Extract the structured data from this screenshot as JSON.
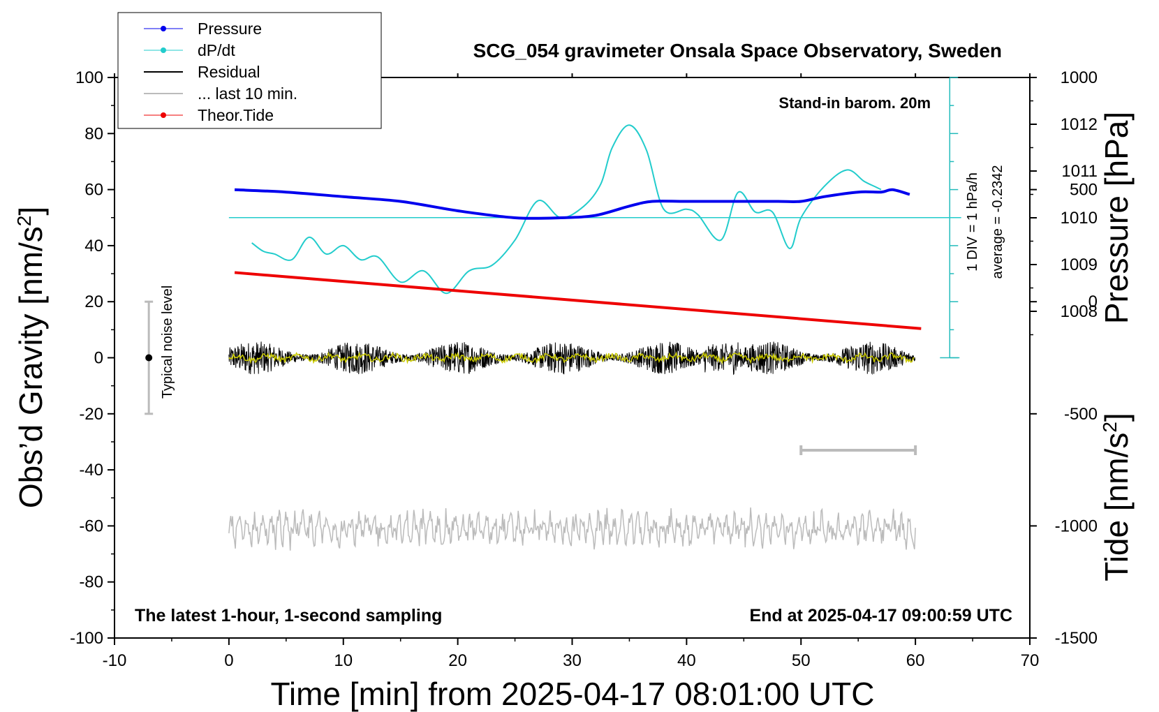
{
  "chart_data": {
    "type": "line",
    "title": "SCG_054 gravimeter Onsala Space Observatory, Sweden",
    "xlabel": "Time [min] from 2025-04-17 08:01:00 UTC",
    "ylabel_left": "Obs’d Gravity [nm/s",
    "ylabel_left_sup": "2",
    "ylabel_left_end": "]",
    "ylabel_pressure": "Pressure [hPa]",
    "ylabel_tide": "Tide [nm/s",
    "ylabel_tide_sup": "2",
    "ylabel_tide_end": "]",
    "xlim": [
      -10,
      70
    ],
    "ylim_gravity": [
      -100,
      100
    ],
    "ylim_pressure_ticks": [
      1008,
      1009,
      1010,
      1011,
      1012
    ],
    "ylim_tide": [
      -1500,
      1000
    ],
    "x_ticks": [
      -10,
      0,
      10,
      20,
      30,
      40,
      50,
      60,
      70
    ],
    "y_ticks_gravity": [
      -100,
      -80,
      -60,
      -40,
      -20,
      0,
      20,
      40,
      60,
      80,
      100
    ],
    "y_ticks_tide": [
      -1500,
      -1000,
      -500,
      0,
      500,
      1000
    ],
    "annotations": {
      "stand_in": "Stand-in barom. 20m",
      "latest": "The latest 1-hour, 1-second sampling",
      "end_at": "End at 2025-04-17 09:00:59 UTC",
      "noise": "Typical noise level",
      "div": "1 DIV = 1 hPa/h",
      "average": "average = -0.2342"
    },
    "legend": [
      {
        "label": "Pressure",
        "color": "#0000ee",
        "marker": true
      },
      {
        "label": "dP/dt",
        "color": "#22cccc",
        "marker": true
      },
      {
        "label": "Residual",
        "color": "#000000",
        "marker": false
      },
      {
        "label": "... last 10 min.",
        "color": "#bbbbbb",
        "marker": false
      },
      {
        "label": "Theor.Tide",
        "color": "#ee0000",
        "marker": true
      }
    ],
    "series": {
      "pressure": {
        "name": "Pressure",
        "unit": "hPa",
        "color": "#0000ee",
        "x": [
          0.5,
          5,
          10,
          15,
          20,
          25,
          29,
          32,
          35,
          37,
          40,
          45,
          48,
          50,
          52,
          55,
          57,
          58,
          59.5
        ],
        "y": [
          1010.6,
          1010.55,
          1010.45,
          1010.35,
          1010.15,
          1010.0,
          1010.0,
          1010.05,
          1010.25,
          1010.35,
          1010.35,
          1010.35,
          1010.35,
          1010.35,
          1010.45,
          1010.55,
          1010.55,
          1010.6,
          1010.5
        ]
      },
      "dpdt": {
        "name": "dP/dt",
        "unit": "gravity-axis units",
        "color": "#22cccc",
        "zero_level": 50,
        "x": [
          2,
          3,
          4,
          5.5,
          7,
          8.5,
          10,
          11.5,
          13,
          15,
          17,
          19,
          21,
          23,
          25,
          27,
          29,
          31,
          32.5,
          33.5,
          35,
          36.5,
          38,
          40,
          41,
          43,
          44.5,
          46,
          47.5,
          49,
          50,
          52,
          54,
          55.5,
          56.5,
          57
        ],
        "y": [
          41,
          38,
          37,
          35,
          43,
          37,
          40,
          35,
          36,
          27,
          31,
          23,
          31,
          33,
          42,
          56,
          50,
          54,
          62,
          75,
          83,
          74,
          53,
          53,
          51,
          42,
          59,
          52,
          52,
          39,
          50,
          61,
          67,
          63,
          61,
          60
        ]
      },
      "residual": {
        "name": "Residual",
        "color": "#000000",
        "x_range": [
          0,
          60
        ],
        "mean": 0,
        "amplitude": 6
      },
      "residual_smooth": {
        "name": "Residual smoothed",
        "color": "#cccc00",
        "x_range": [
          0,
          60
        ],
        "mean": 0,
        "amplitude": 2
      },
      "last10": {
        "name": "... last 10 min.",
        "color": "#bbbbbb",
        "x_range": [
          0,
          60
        ],
        "mean": -61,
        "amplitude": 7
      },
      "tide": {
        "name": "Theor.Tide",
        "unit": "nm/s2",
        "color": "#ee0000",
        "x": [
          0.5,
          60.5
        ],
        "y": [
          130,
          -120
        ]
      }
    },
    "scale_bar": {
      "x": [
        50,
        60
      ],
      "y": -33
    },
    "noise_bar": {
      "x": -7,
      "y": [
        -20,
        20
      ],
      "point": 0
    }
  }
}
